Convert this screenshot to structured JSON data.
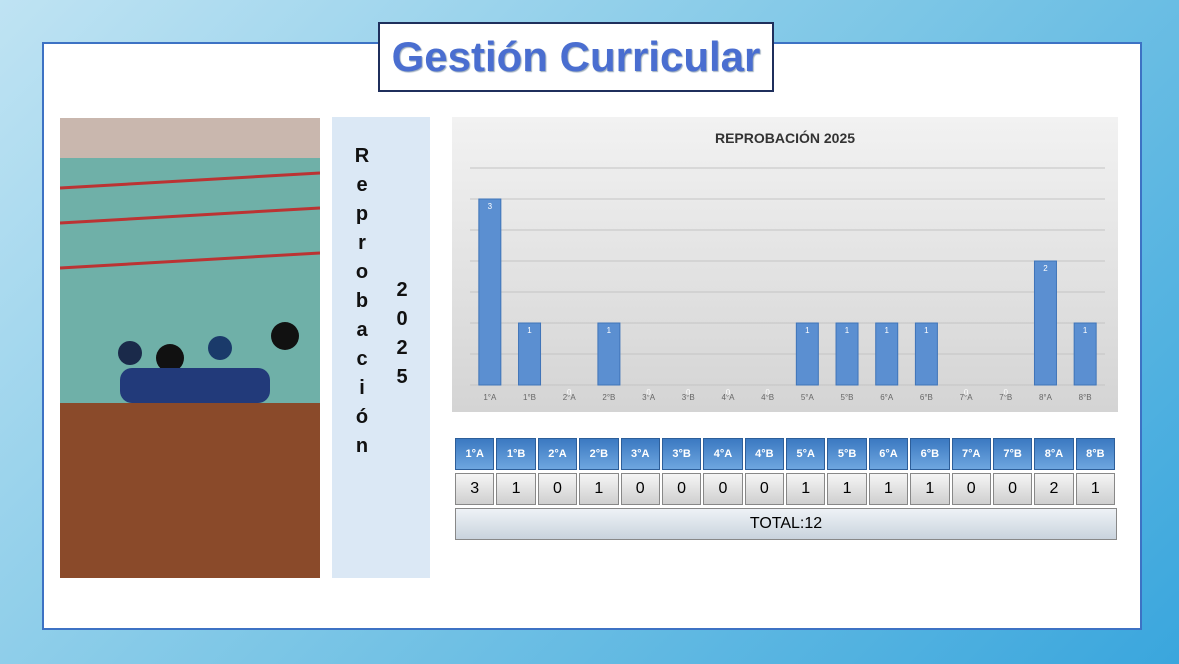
{
  "header": {
    "title": "Gestión Curricular"
  },
  "side_label": {
    "word": "Reprobación",
    "year": "2025"
  },
  "chart_data": {
    "type": "bar",
    "title": "REPROBACIÓN 2025",
    "categories": [
      "1°A",
      "1°B",
      "2°A",
      "2°B",
      "3°A",
      "3°B",
      "4°A",
      "4°B",
      "5°A",
      "5°B",
      "6°A",
      "6°B",
      "7°A",
      "7°B",
      "8°A",
      "8°B"
    ],
    "values": [
      3,
      1,
      0,
      1,
      0,
      0,
      0,
      0,
      1,
      1,
      1,
      1,
      0,
      0,
      2,
      1
    ],
    "color": "#5b8fd1",
    "ylim": [
      0,
      3.5
    ],
    "yticks": [
      0,
      0.5,
      1,
      1.5,
      2,
      2.5,
      3,
      3.5
    ],
    "grid": true
  },
  "table": {
    "total": "TOTAL:12"
  }
}
